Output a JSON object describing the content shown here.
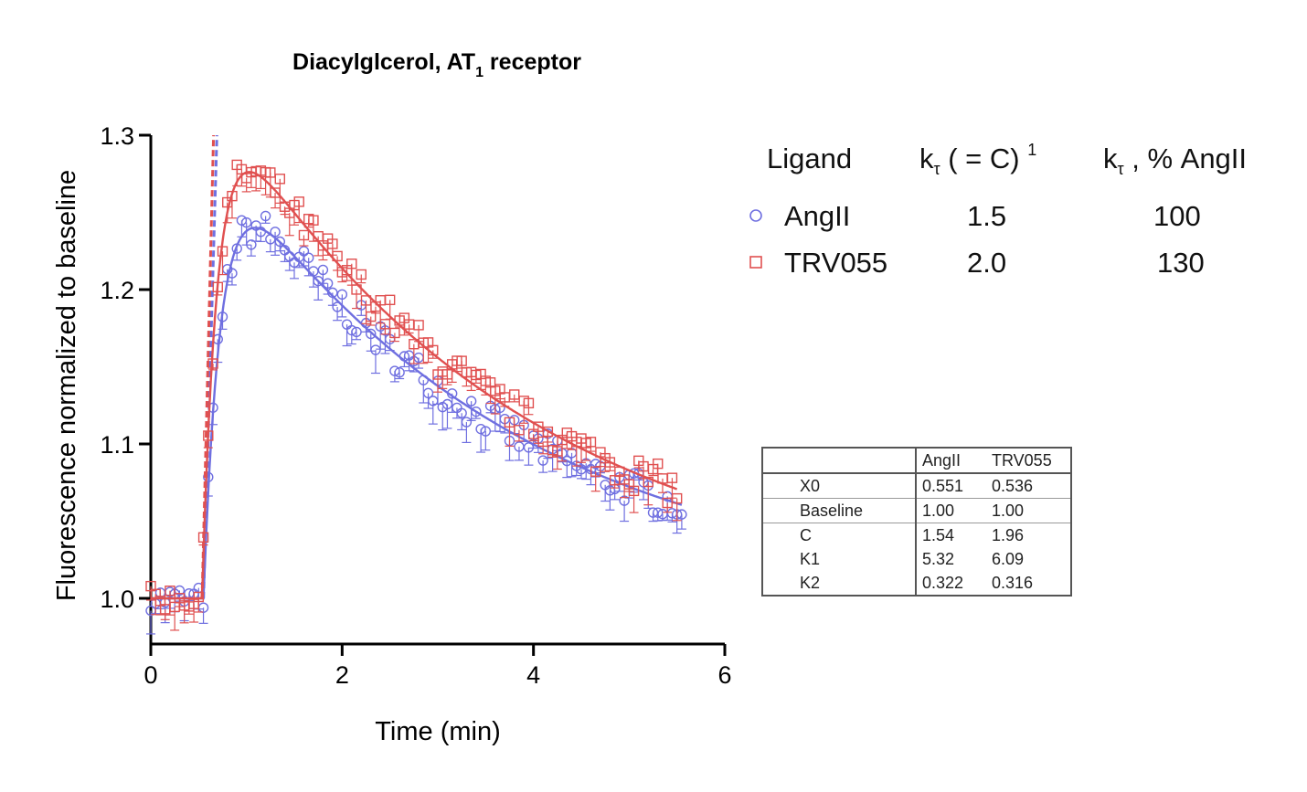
{
  "chart_data": {
    "type": "scatter",
    "title_main": "Diacylglcerol, AT",
    "title_sub": "1",
    "title_end": " receptor",
    "xlabel": "Time (min)",
    "ylabel": "Fluorescence normalized to baseline",
    "xlim": [
      0,
      6
    ],
    "ylim": [
      0.97,
      1.3
    ],
    "x_ticks": [
      0,
      2,
      4,
      6
    ],
    "y_ticks": [
      1.0,
      1.1,
      1.2,
      1.3
    ],
    "x_tick_labels": [
      "0",
      "2",
      "4",
      "6"
    ],
    "y_tick_labels": [
      "1.0",
      "1.1",
      "1.2",
      "1.3"
    ],
    "grid": false,
    "series": [
      {
        "name": "AngII",
        "marker": "circle",
        "color": "#6f6fe0",
        "fit": {
          "X0": 0.551,
          "Baseline": 1.0,
          "C": 1.54,
          "K1": 5.32,
          "K2": 0.322
        },
        "peak_time": 1.1,
        "peak_value": 1.24,
        "end_time": 5.55,
        "end_value": 1.06
      },
      {
        "name": "TRV055",
        "marker": "square",
        "color": "#e05050",
        "fit": {
          "X0": 0.536,
          "Baseline": 1.0,
          "C": 1.96,
          "K1": 6.09,
          "K2": 0.316
        },
        "peak_time": 1.1,
        "peak_value": 1.275,
        "end_time": 5.5,
        "end_value": 1.075
      }
    ]
  },
  "legend": {
    "col_ligand": "Ligand",
    "col_ktau_prefix": "k",
    "col_ktau_sub": "τ",
    "col_ktau_suffix": " ( = C) ",
    "col_ktau_sup": "1",
    "col_pct_prefix": "k",
    "col_pct_sub": "τ",
    "col_pct_suffix": " , % AngII",
    "rows": [
      {
        "marker": "circle",
        "ligand": "AngII",
        "ktau": "1.5",
        "pct": "100"
      },
      {
        "marker": "square",
        "ligand": "TRV055",
        "ktau": "2.0",
        "pct": "130"
      }
    ]
  },
  "param_table": {
    "headers": [
      "",
      "AngII",
      "TRV055"
    ],
    "rows": [
      {
        "name": "X0",
        "a": "0.551",
        "b": "0.536"
      },
      {
        "name": "Baseline",
        "a": "1.00",
        "b": "1.00"
      },
      {
        "name": "C",
        "a": "1.54",
        "b": "1.96"
      },
      {
        "name": "K1",
        "a": "5.32",
        "b": "6.09"
      },
      {
        "name": "K2",
        "a": "0.322",
        "b": "0.316"
      }
    ]
  }
}
